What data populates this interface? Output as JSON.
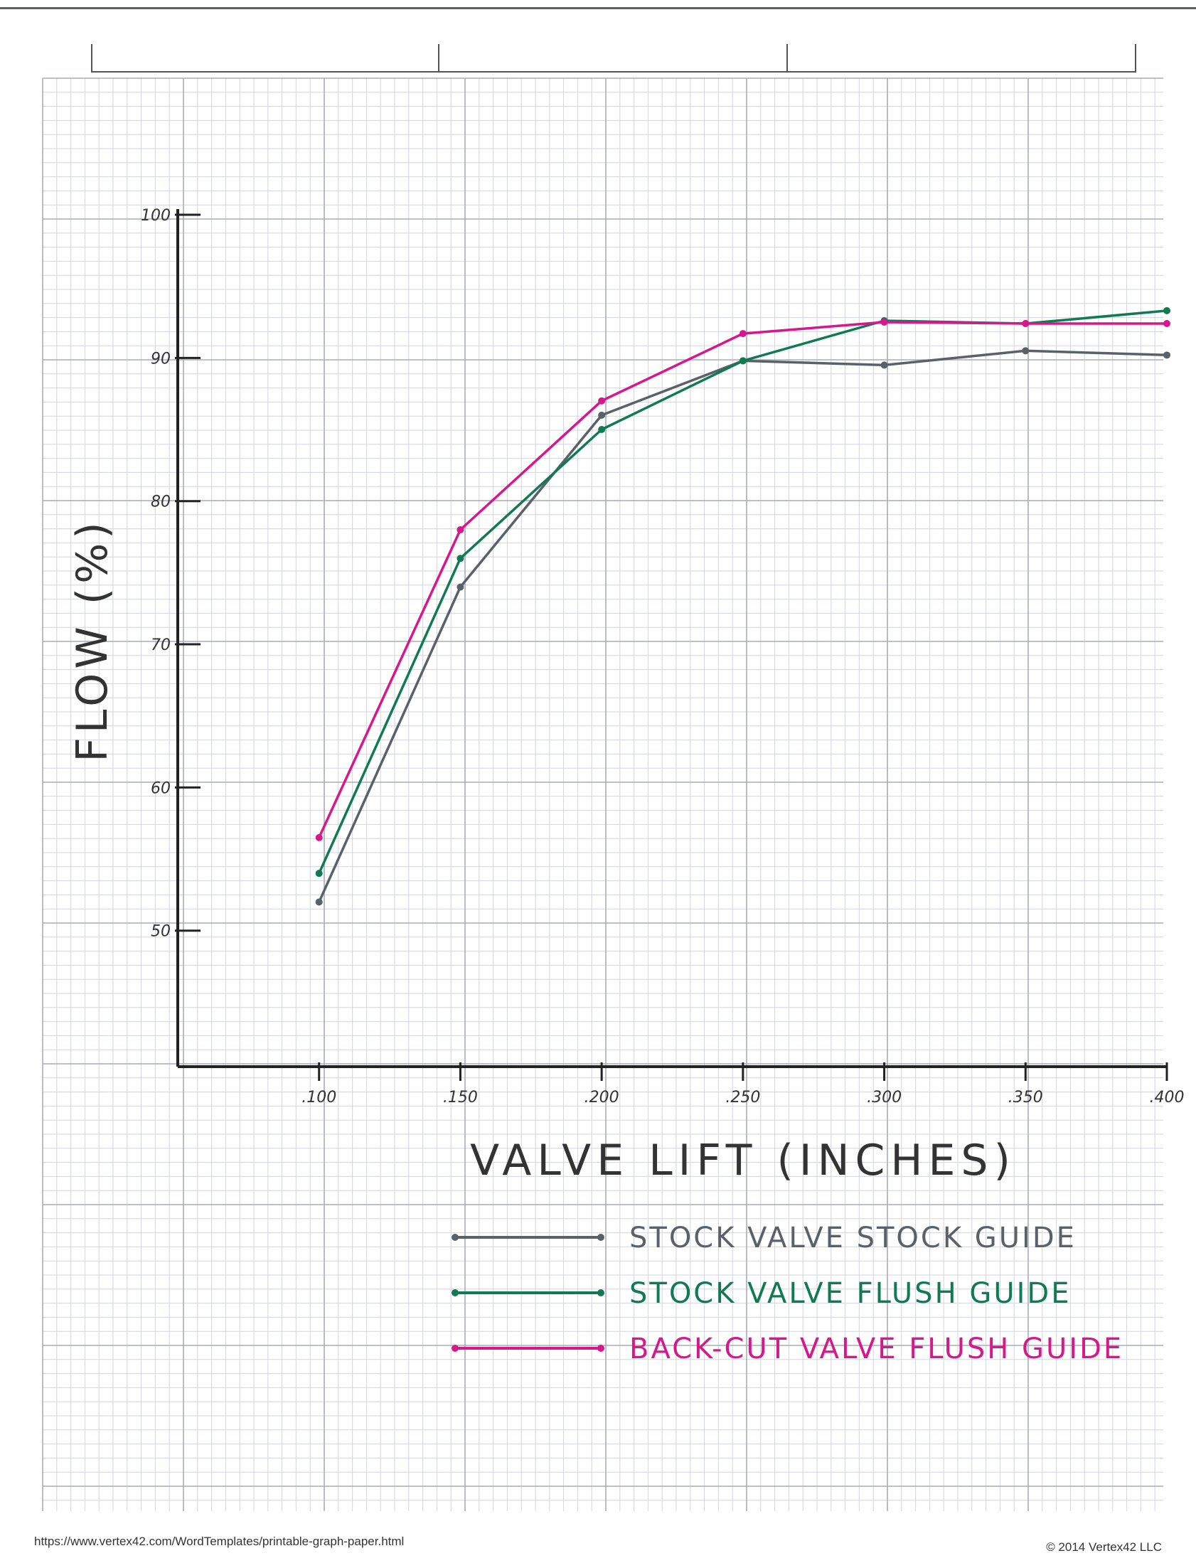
{
  "chart_data": {
    "type": "line",
    "title": "",
    "xlabel": "VALVE LIFT (INCHES)",
    "ylabel": "FLOW (%)",
    "x": [
      0.1,
      0.15,
      0.2,
      0.25,
      0.3,
      0.35,
      0.4
    ],
    "x_tick_labels": [
      ".100",
      ".150",
      ".200",
      ".250",
      ".300",
      ".350",
      ".400"
    ],
    "y_ticks": [
      50,
      60,
      70,
      80,
      90,
      100
    ],
    "y_tick_labels": [
      "50",
      "60",
      "70",
      "80",
      "90",
      "100"
    ],
    "xlim": [
      0.05,
      0.4
    ],
    "ylim": [
      40.5,
      100
    ],
    "grid": true,
    "legend_position": "bottom-right",
    "series": [
      {
        "name": "STOCK VALVE  STOCK GUIDE",
        "color": "#5b6168",
        "values": [
          52,
          74,
          86,
          89.8,
          89.5,
          90.5,
          90.2
        ]
      },
      {
        "name": "STOCK VALVE  FLUSH GUIDE",
        "color": "#117a52",
        "values": [
          54,
          76,
          85,
          89.8,
          92.6,
          92.4,
          93.3
        ]
      },
      {
        "name": "BACK-CUT VALVE  FLUSH GUIDE",
        "color": "#d6188c",
        "values": [
          56.5,
          78,
          87,
          91.7,
          92.5,
          92.4,
          92.4
        ]
      }
    ]
  },
  "footer": {
    "url": "https://www.vertex42.com/WordTemplates/printable-graph-paper.html",
    "copyright": "© 2014 Vertex42 LLC"
  }
}
